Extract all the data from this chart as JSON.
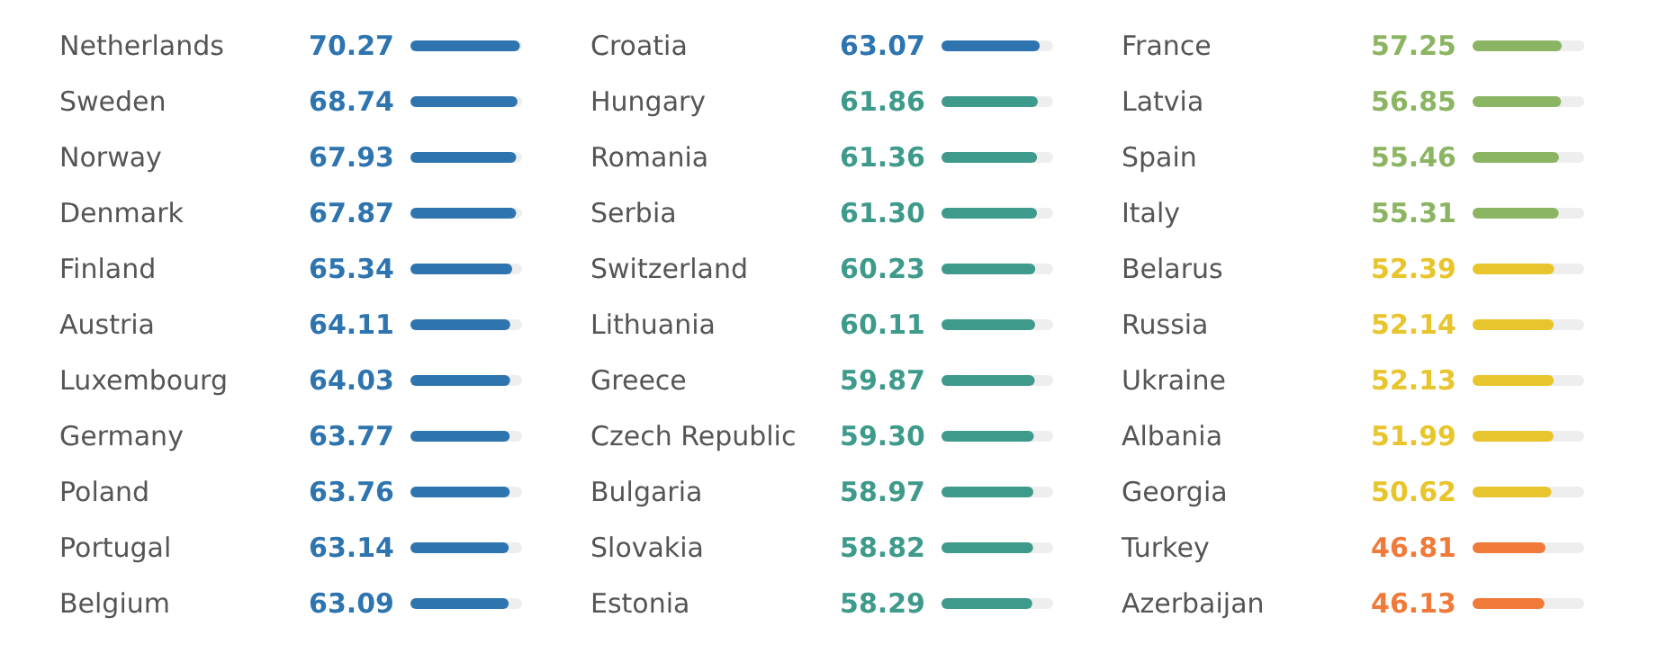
{
  "chart_data": [
    {
      "type": "bar",
      "orientation": "horizontal",
      "categories": [
        "Netherlands",
        "Sweden",
        "Norway",
        "Denmark",
        "Finland",
        "Austria",
        "Luxembourg",
        "Germany",
        "Poland",
        "Portugal",
        "Belgium"
      ],
      "values": [
        70.27,
        68.74,
        67.93,
        67.87,
        65.34,
        64.11,
        64.03,
        63.77,
        63.76,
        63.14,
        63.09
      ],
      "value_labels": [
        "70.27",
        "68.74",
        "67.93",
        "67.87",
        "65.34",
        "64.11",
        "64.03",
        "63.77",
        "63.76",
        "63.14",
        "63.09"
      ],
      "colors": [
        "#2e75b0",
        "#2e75b0",
        "#2e75b0",
        "#2e75b0",
        "#2e75b0",
        "#2e75b0",
        "#2e75b0",
        "#2e75b0",
        "#2e75b0",
        "#2e75b0",
        "#2e75b0"
      ]
    },
    {
      "type": "bar",
      "orientation": "horizontal",
      "categories": [
        "Croatia",
        "Hungary",
        "Romania",
        "Serbia",
        "Switzerland",
        "Lithuania",
        "Greece",
        "Czech Republic",
        "Bulgaria",
        "Slovakia",
        "Estonia"
      ],
      "values": [
        63.07,
        61.86,
        61.36,
        61.3,
        60.23,
        60.11,
        59.87,
        59.3,
        58.97,
        58.82,
        58.29
      ],
      "value_labels": [
        "63.07",
        "61.86",
        "61.36",
        "61.30",
        "60.23",
        "60.11",
        "59.87",
        "59.30",
        "58.97",
        "58.82",
        "58.29"
      ],
      "colors": [
        "#2e75b0",
        "#3e9a8a",
        "#3e9a8a",
        "#3e9a8a",
        "#3e9a8a",
        "#3e9a8a",
        "#3e9a8a",
        "#3e9a8a",
        "#3e9a8a",
        "#3e9a8a",
        "#3e9a8a"
      ]
    },
    {
      "type": "bar",
      "orientation": "horizontal",
      "categories": [
        "France",
        "Latvia",
        "Spain",
        "Italy",
        "Belarus",
        "Russia",
        "Ukraine",
        "Albania",
        "Georgia",
        "Turkey",
        "Azerbaijan"
      ],
      "values": [
        57.25,
        56.85,
        55.46,
        55.31,
        52.39,
        52.14,
        52.13,
        51.99,
        50.62,
        46.81,
        46.13
      ],
      "value_labels": [
        "57.25",
        "56.85",
        "55.46",
        "55.31",
        "52.39",
        "52.14",
        "52.13",
        "51.99",
        "50.62",
        "46.81",
        "46.13"
      ],
      "colors": [
        "#8bb562",
        "#8bb562",
        "#8bb562",
        "#8bb562",
        "#e8c52c",
        "#e8c52c",
        "#e8c52c",
        "#e8c52c",
        "#e8c52c",
        "#f07a3a",
        "#f07a3a"
      ]
    }
  ]
}
